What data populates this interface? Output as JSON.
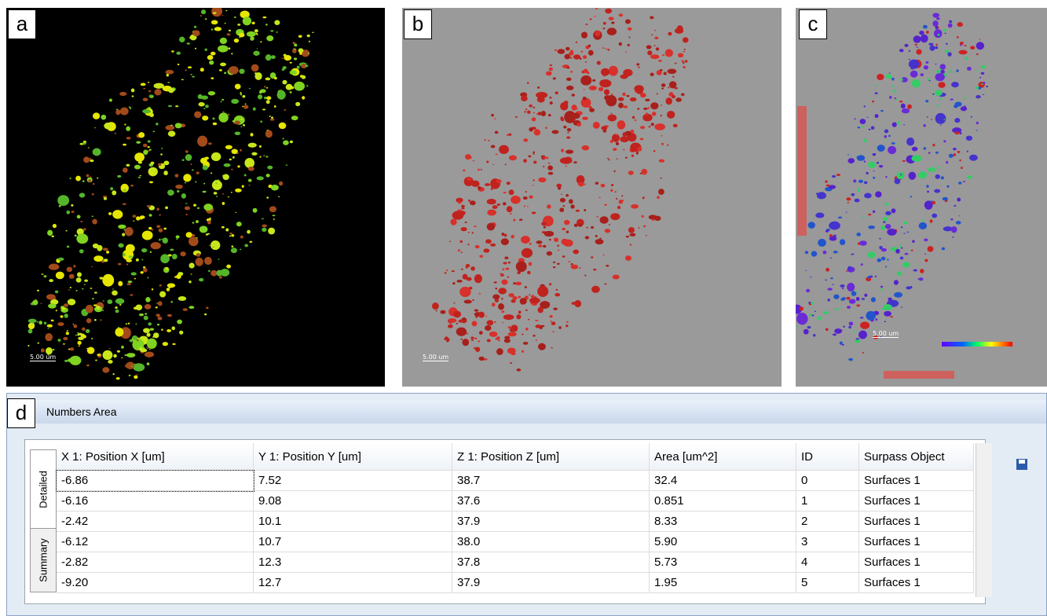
{
  "panels": [
    {
      "label": "a",
      "scale": "5.00 um"
    },
    {
      "label": "b",
      "scale": "5.00 um"
    },
    {
      "label": "c",
      "scale": "5.00 um"
    }
  ],
  "window": {
    "label": "d",
    "title": "Numbers Area",
    "tabs": [
      "Detailed",
      "Summary"
    ],
    "table": {
      "headers": [
        "X 1: Position X [um]",
        "Y 1: Position Y [um]",
        "Z 1: Position Z [um]",
        "Area [um^2]",
        "ID",
        "Surpass Object"
      ],
      "rows": [
        [
          "-6.86",
          "7.52",
          "38.7",
          "32.4",
          "0",
          "Surfaces 1"
        ],
        [
          "-6.16",
          "9.08",
          "37.6",
          "0.851",
          "1",
          "Surfaces 1"
        ],
        [
          "-2.42",
          "10.1",
          "37.9",
          "8.33",
          "2",
          "Surfaces 1"
        ],
        [
          "-6.12",
          "10.7",
          "38.0",
          "5.90",
          "3",
          "Surfaces 1"
        ],
        [
          "-2.82",
          "12.3",
          "37.8",
          "5.73",
          "4",
          "Surfaces 1"
        ],
        [
          "-9.20",
          "12.7",
          "37.9",
          "1.95",
          "5",
          "Surfaces 1"
        ]
      ]
    }
  }
}
